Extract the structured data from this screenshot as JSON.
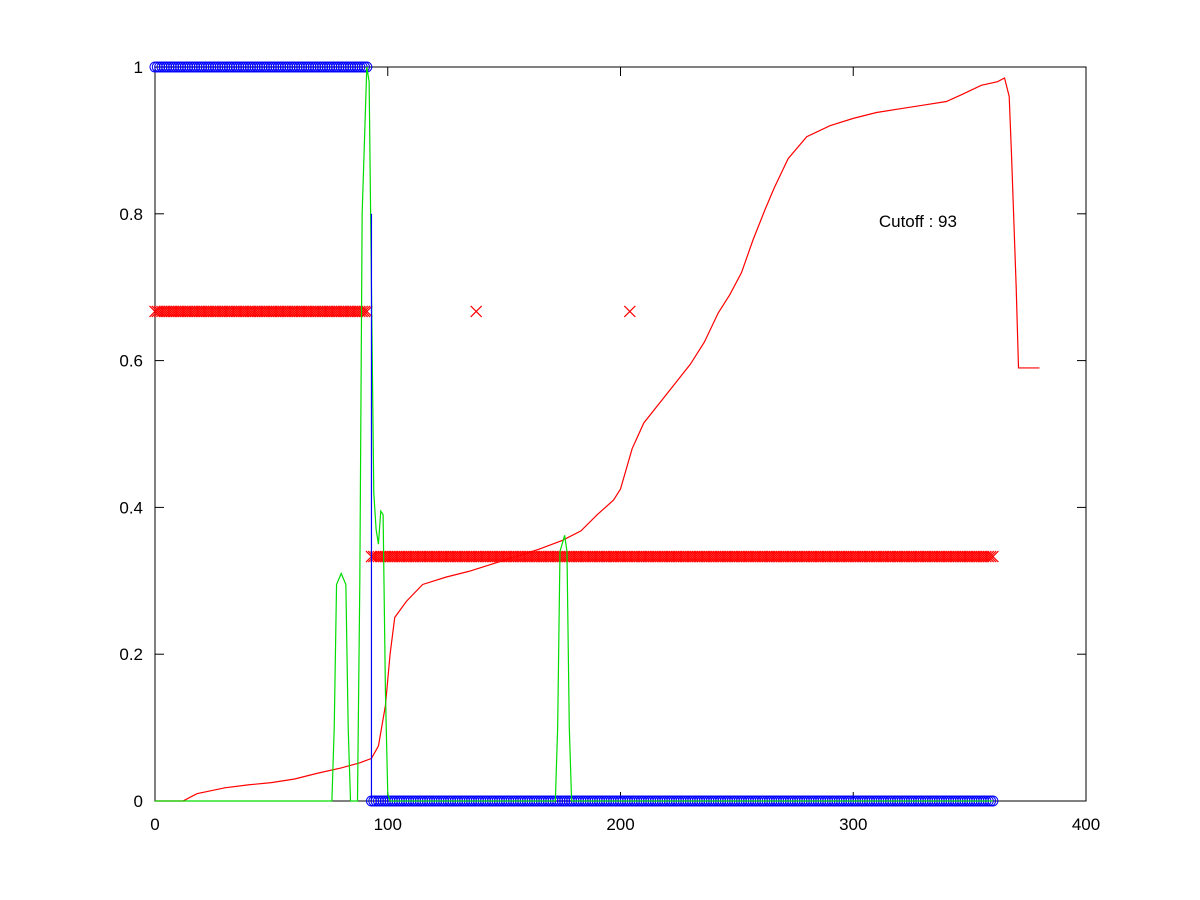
{
  "chart_data": {
    "type": "line",
    "title": "",
    "xlabel": "",
    "ylabel": "",
    "xlim": [
      0,
      400
    ],
    "ylim": [
      0,
      1
    ],
    "xticks": [
      0,
      100,
      200,
      300,
      400
    ],
    "yticks": [
      0,
      0.2,
      0.4,
      0.6,
      0.8,
      1
    ],
    "xtick_labels": [
      "0",
      "100",
      "200",
      "300",
      "400"
    ],
    "ytick_labels": [
      "0",
      "0.2",
      "0.4",
      "0.6",
      "0.8",
      "1"
    ],
    "grid": false,
    "annotation": "Cutoff : 93",
    "annotation_at": [
      311,
      0.79
    ],
    "series": [
      {
        "style": "circle-markers",
        "color": "#0000ff",
        "segments": [
          {
            "x_start": 0,
            "x_end": 91,
            "y": 1
          },
          {
            "x_start": 93,
            "x_end": 360,
            "y": 0
          }
        ],
        "spacing": 1
      },
      {
        "style": "x-markers",
        "color": "#ff0000",
        "segments": [
          {
            "x_start": 0,
            "x_end": 91,
            "y": 0.667
          },
          {
            "x_start": 93,
            "x_end": 360,
            "y": 0.333
          }
        ],
        "spacing": 1,
        "extra_points": [
          [
            138,
            0.667
          ],
          [
            204,
            0.667
          ]
        ]
      },
      {
        "style": "line",
        "color": "#ff0000",
        "points": [
          [
            0,
            0
          ],
          [
            12,
            0
          ],
          [
            18,
            0.01
          ],
          [
            30,
            0.018
          ],
          [
            40,
            0.022
          ],
          [
            50,
            0.025
          ],
          [
            60,
            0.03
          ],
          [
            70,
            0.038
          ],
          [
            80,
            0.045
          ],
          [
            88,
            0.052
          ],
          [
            93,
            0.058
          ],
          [
            96,
            0.075
          ],
          [
            99,
            0.13
          ],
          [
            101,
            0.2
          ],
          [
            103,
            0.25
          ],
          [
            108,
            0.272
          ],
          [
            115,
            0.295
          ],
          [
            125,
            0.305
          ],
          [
            135,
            0.313
          ],
          [
            145,
            0.323
          ],
          [
            155,
            0.333
          ],
          [
            165,
            0.343
          ],
          [
            175,
            0.355
          ],
          [
            183,
            0.368
          ],
          [
            190,
            0.39
          ],
          [
            197,
            0.41
          ],
          [
            200,
            0.425
          ],
          [
            205,
            0.48
          ],
          [
            210,
            0.515
          ],
          [
            220,
            0.555
          ],
          [
            230,
            0.595
          ],
          [
            236,
            0.625
          ],
          [
            242,
            0.665
          ],
          [
            247,
            0.69
          ],
          [
            252,
            0.72
          ],
          [
            257,
            0.765
          ],
          [
            262,
            0.805
          ],
          [
            266,
            0.835
          ],
          [
            272,
            0.875
          ],
          [
            280,
            0.905
          ],
          [
            290,
            0.92
          ],
          [
            300,
            0.93
          ],
          [
            310,
            0.938
          ],
          [
            320,
            0.943
          ],
          [
            330,
            0.948
          ],
          [
            340,
            0.953
          ],
          [
            347,
            0.963
          ],
          [
            355,
            0.975
          ],
          [
            362,
            0.98
          ],
          [
            365,
            0.985
          ],
          [
            367,
            0.96
          ],
          [
            368,
            0.88
          ],
          [
            370,
            0.7
          ],
          [
            371,
            0.59
          ],
          [
            380,
            0.59
          ]
        ]
      },
      {
        "style": "line",
        "color": "#00dd00",
        "points": [
          [
            0,
            0
          ],
          [
            76,
            0
          ],
          [
            77,
            0.1
          ],
          [
            78,
            0.295
          ],
          [
            80,
            0.31
          ],
          [
            82,
            0.295
          ],
          [
            83,
            0.1
          ],
          [
            84,
            0
          ],
          [
            87,
            0
          ],
          [
            88,
            0.3
          ],
          [
            89,
            0.8
          ],
          [
            91,
            1
          ],
          [
            92,
            0.98
          ],
          [
            93,
            0.7
          ],
          [
            94,
            0.42
          ],
          [
            95,
            0.37
          ],
          [
            96,
            0.35
          ],
          [
            97,
            0.395
          ],
          [
            98,
            0.39
          ],
          [
            99,
            0.15
          ],
          [
            100,
            0.01
          ],
          [
            101,
            0
          ],
          [
            172,
            0
          ],
          [
            173,
            0.1
          ],
          [
            174,
            0.34
          ],
          [
            176,
            0.362
          ],
          [
            177,
            0.34
          ],
          [
            178,
            0.1
          ],
          [
            179,
            0
          ],
          [
            360,
            0
          ]
        ]
      },
      {
        "style": "line",
        "color": "#0000ff",
        "points": [
          [
            93,
            0
          ],
          [
            93,
            0.8
          ]
        ]
      }
    ]
  }
}
